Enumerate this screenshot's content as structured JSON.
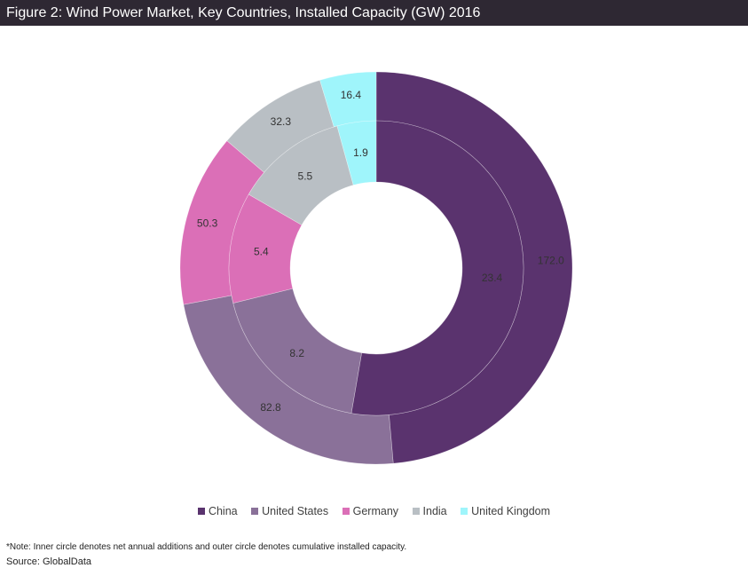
{
  "title": "Figure 2: Wind Power Market, Key Countries, Installed Capacity (GW) 2016",
  "chart_data": {
    "type": "donut",
    "categories": [
      "China",
      "United States",
      "Germany",
      "India",
      "United Kingdom"
    ],
    "colors": [
      "#5a336e",
      "#8a7199",
      "#db6fb7",
      "#b9bfc4",
      "#9ff5fb"
    ],
    "series": [
      {
        "values": [
          172.0,
          82.8,
          50.3,
          32.3,
          16.4
        ],
        "ring": "outer"
      },
      {
        "values": [
          23.4,
          8.2,
          5.4,
          5.5,
          1.9
        ],
        "ring": "inner"
      }
    ],
    "labels": {
      "outer": [
        "172.0",
        "82.8",
        "50.3",
        "32.3",
        "16.4"
      ],
      "inner": [
        "23.4",
        "8.2",
        "5.4",
        "5.5",
        "1.9"
      ]
    },
    "legend_position": "bottom"
  },
  "legend": [
    "China",
    "United States",
    "Germany",
    "India",
    "United Kingdom"
  ],
  "note": "*Note: Inner circle denotes net annual additions and outer circle denotes cumulative installed capacity.",
  "source": "Source: GlobalData"
}
